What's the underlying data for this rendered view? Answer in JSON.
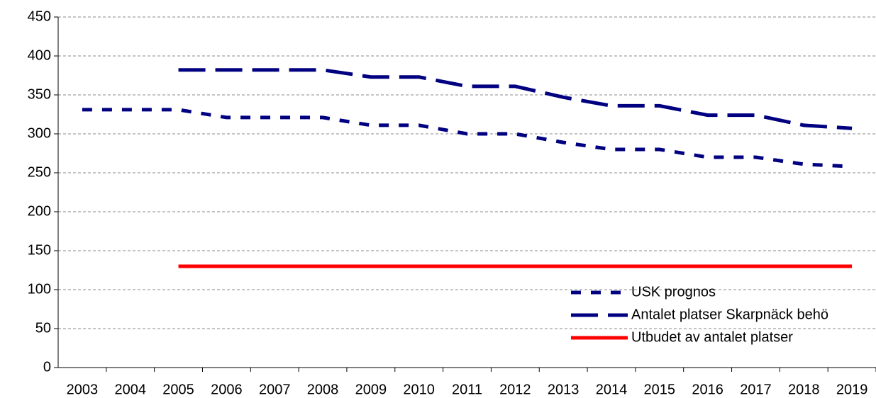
{
  "chart_data": {
    "type": "line",
    "categories": [
      "2003",
      "2004",
      "2005",
      "2006",
      "2007",
      "2008",
      "2009",
      "2010",
      "2011",
      "2012",
      "2013",
      "2014",
      "2015",
      "2016",
      "2017",
      "2018",
      "2019"
    ],
    "series": [
      {
        "name": "USK prognos",
        "color": "#000080",
        "line_style": "dotted",
        "values": [
          331,
          331,
          331,
          321,
          321,
          321,
          311,
          311,
          300,
          300,
          289,
          280,
          280,
          270,
          270,
          261,
          258
        ]
      },
      {
        "name": "Antalet platser Skarpnäck behö",
        "color": "#000080",
        "line_style": "dashed",
        "values": [
          null,
          null,
          382,
          382,
          382,
          382,
          373,
          373,
          361,
          361,
          347,
          336,
          336,
          324,
          324,
          311,
          307
        ]
      },
      {
        "name": "Utbudet av antalet platser",
        "color": "#ff0000",
        "line_style": "solid",
        "values": [
          null,
          null,
          130,
          130,
          130,
          130,
          130,
          130,
          130,
          130,
          130,
          130,
          130,
          130,
          130,
          130,
          130
        ]
      }
    ],
    "ylim": [
      0,
      450
    ],
    "yticks": [
      0,
      50,
      100,
      150,
      200,
      250,
      300,
      350,
      400,
      450
    ],
    "grid": true
  }
}
